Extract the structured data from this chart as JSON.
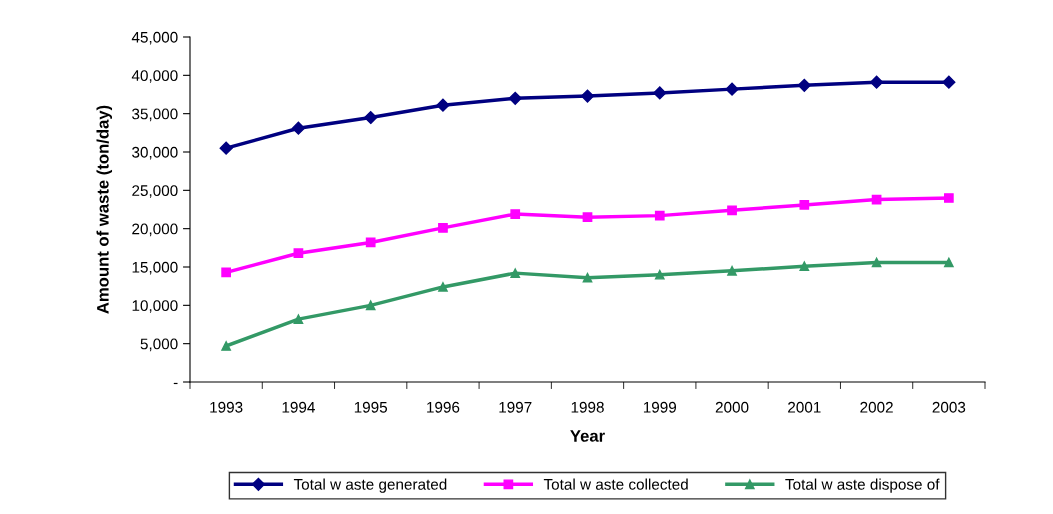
{
  "chart_data": {
    "type": "line",
    "xlabel": "Year",
    "ylabel": "Amount of waste (ton/day)",
    "categories": [
      "1993",
      "1994",
      "1995",
      "1996",
      "1997",
      "1998",
      "1999",
      "2000",
      "2001",
      "2002",
      "2003"
    ],
    "series": [
      {
        "name": "Total w aste generated",
        "color": "#000080",
        "marker": "diamond",
        "values": [
          30500,
          33100,
          34500,
          36100,
          37000,
          37300,
          37700,
          38200,
          38700,
          39100,
          39100
        ]
      },
      {
        "name": "Total w aste collected",
        "color": "#ff00ff",
        "marker": "square",
        "values": [
          14300,
          16800,
          18200,
          20100,
          21900,
          21500,
          21700,
          22400,
          23100,
          23800,
          24000
        ]
      },
      {
        "name": "Total w aste dispose of",
        "color": "#339966",
        "marker": "triangle",
        "values": [
          4700,
          8200,
          10000,
          12400,
          14200,
          13600,
          14000,
          14500,
          15100,
          15600,
          15600
        ]
      }
    ],
    "ylim": [
      0,
      45000
    ],
    "yticks": [
      {
        "value": 0,
        "label": "-"
      },
      {
        "value": 5000,
        "label": "5,000"
      },
      {
        "value": 10000,
        "label": "10,000"
      },
      {
        "value": 15000,
        "label": "15,000"
      },
      {
        "value": 20000,
        "label": "20,000"
      },
      {
        "value": 25000,
        "label": "25,000"
      },
      {
        "value": 30000,
        "label": "30,000"
      },
      {
        "value": 35000,
        "label": "35,000"
      },
      {
        "value": 40000,
        "label": "40,000"
      },
      {
        "value": 45000,
        "label": "45,000"
      }
    ],
    "grid": false,
    "legend": "bottom",
    "line_style": "solid"
  }
}
